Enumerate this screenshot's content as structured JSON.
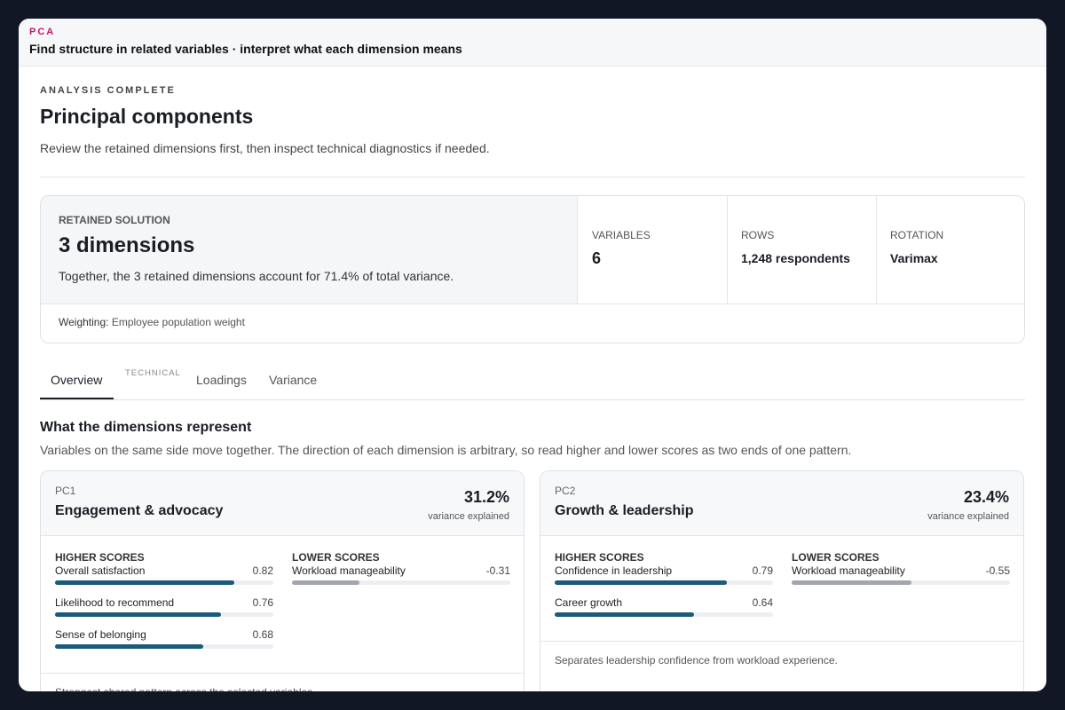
{
  "header": {
    "tag": "PCA",
    "title": "Find structure in related variables · interpret what each dimension means"
  },
  "intro": {
    "eyebrow": "ANALYSIS COMPLETE",
    "title": "Principal components",
    "description": "Review the retained dimensions first, then inspect technical diagnostics if needed."
  },
  "summary": {
    "label": "RETAINED SOLUTION",
    "value": "3 dimensions",
    "description": "Together, the 3 retained dimensions account for 71.4% of total variance.",
    "stats": [
      {
        "label": "VARIABLES",
        "value": "6"
      },
      {
        "label": "ROWS",
        "value": "1,248 respondents"
      },
      {
        "label": "ROTATION",
        "value": "Varimax"
      }
    ],
    "weighting_label": "Weighting:",
    "weighting_value": "Employee population weight"
  },
  "tabs": {
    "items": [
      "Overview",
      "Loadings",
      "Variance"
    ],
    "group_label": "TECHNICAL"
  },
  "section": {
    "title": "What the dimensions represent",
    "description": "Variables on the same side move together. The direction of each dimension is arbitrary, so read higher and lower scores as two ends of one pattern."
  },
  "components": [
    {
      "id": "PC1",
      "name": "Engagement & advocacy",
      "variance": "31.2%",
      "variance_label": "variance explained",
      "higher_label": "HIGHER SCORES",
      "lower_label": "LOWER SCORES",
      "higher": [
        {
          "name": "Overall satisfaction",
          "loading": 0.82
        },
        {
          "name": "Likelihood to recommend",
          "loading": 0.76
        },
        {
          "name": "Sense of belonging",
          "loading": 0.68
        }
      ],
      "lower": [
        {
          "name": "Workload manageability",
          "loading": -0.31
        }
      ],
      "note": "Strongest shared pattern across the selected variables."
    },
    {
      "id": "PC2",
      "name": "Growth & leadership",
      "variance": "23.4%",
      "variance_label": "variance explained",
      "higher_label": "HIGHER SCORES",
      "lower_label": "LOWER SCORES",
      "higher": [
        {
          "name": "Confidence in leadership",
          "loading": 0.79
        },
        {
          "name": "Career growth",
          "loading": 0.64
        }
      ],
      "lower": [
        {
          "name": "Workload manageability",
          "loading": -0.55
        }
      ],
      "note": "Separates leadership confidence from workload experience."
    }
  ]
}
